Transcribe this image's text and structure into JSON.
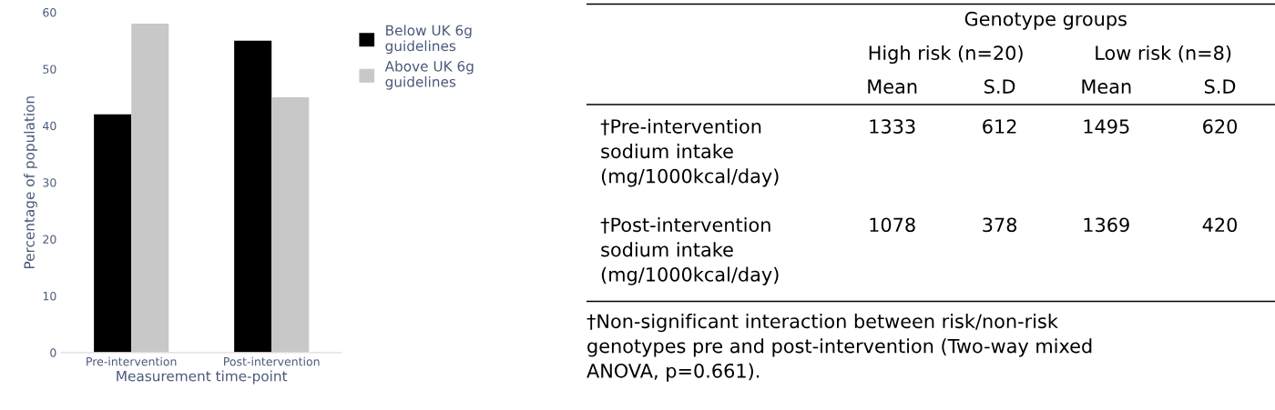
{
  "chart_data": [
    {
      "type": "bar",
      "categories": [
        "Pre-intervention",
        "Post-intervention"
      ],
      "xlabel": "Measurement time-point",
      "ylabel": "Percentage of population",
      "ylim": [
        0,
        60
      ],
      "yticks": [
        0,
        10,
        20,
        30,
        40,
        50,
        60
      ],
      "legend": "top right",
      "series": [
        {
          "name": "Below UK 6g\nguidelines",
          "color": "#000000",
          "values": [
            42,
            55
          ]
        },
        {
          "name": "Above UK 6g\nguidelines",
          "color": "#c8c8c8",
          "values": [
            58,
            45
          ]
        }
      ]
    },
    {
      "type": "heatmap",
      "title": "Genotype groups",
      "categories": [
        "Mean",
        "S.D",
        "Mean",
        "S.D"
      ],
      "y_categories": [
        "†Pre-intervention\nsodium intake\n(mg/1000kcal/day)",
        "†Post-intervention\nsodium intake\n(mg/1000kcal/day)"
      ],
      "cells": [
        [
          1333,
          612,
          1495,
          620
        ],
        [
          1078,
          378,
          1369,
          420
        ]
      ],
      "data_labels": true,
      "annotations": [
        "High risk (n=20)",
        "Low risk (n=8)",
        "†Non-significant interaction between risk/non-risk\ngenotypes pre and post-intervention (Two-way mixed\nANOVA, p=0.661)."
      ]
    }
  ]
}
